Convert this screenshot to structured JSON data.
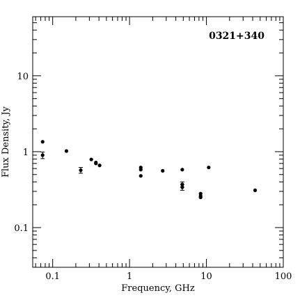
{
  "chart_data": {
    "type": "scatter",
    "title": "",
    "annotation": "0321+340",
    "xlabel": "Frequency, GHz",
    "ylabel": "Flux Density, Jy",
    "xscale": "log",
    "yscale": "log",
    "xlim": [
      0.055,
      100
    ],
    "ylim": [
      0.03,
      60
    ],
    "x_tick_labels": [
      "0.1",
      "1",
      "10",
      "100"
    ],
    "y_tick_labels": [
      "0.1",
      "1",
      "10"
    ],
    "x_major_ticks": [
      0.1,
      1,
      10,
      100
    ],
    "y_major_ticks": [
      0.1,
      1,
      10
    ],
    "grid": false,
    "series": [
      {
        "points": [
          {
            "x": 0.074,
            "y": 1.35
          },
          {
            "x": 0.074,
            "y": 0.9,
            "err": 0.09
          },
          {
            "x": 0.151,
            "y": 1.02
          },
          {
            "x": 0.232,
            "y": 0.57,
            "err": 0.05
          },
          {
            "x": 0.318,
            "y": 0.79
          },
          {
            "x": 0.365,
            "y": 0.7
          },
          {
            "x": 0.365,
            "y": 0.72
          },
          {
            "x": 0.408,
            "y": 0.66
          },
          {
            "x": 1.4,
            "y": 0.62
          },
          {
            "x": 1.4,
            "y": 0.58
          },
          {
            "x": 1.4,
            "y": 0.48
          },
          {
            "x": 2.7,
            "y": 0.56
          },
          {
            "x": 4.85,
            "y": 0.58
          },
          {
            "x": 4.85,
            "y": 0.37,
            "err": 0.03
          },
          {
            "x": 4.85,
            "y": 0.34,
            "err": 0.03
          },
          {
            "x": 8.4,
            "y": 0.28
          },
          {
            "x": 8.4,
            "y": 0.26
          },
          {
            "x": 8.4,
            "y": 0.25
          },
          {
            "x": 10.7,
            "y": 0.62
          },
          {
            "x": 43.0,
            "y": 0.31
          }
        ]
      }
    ]
  }
}
